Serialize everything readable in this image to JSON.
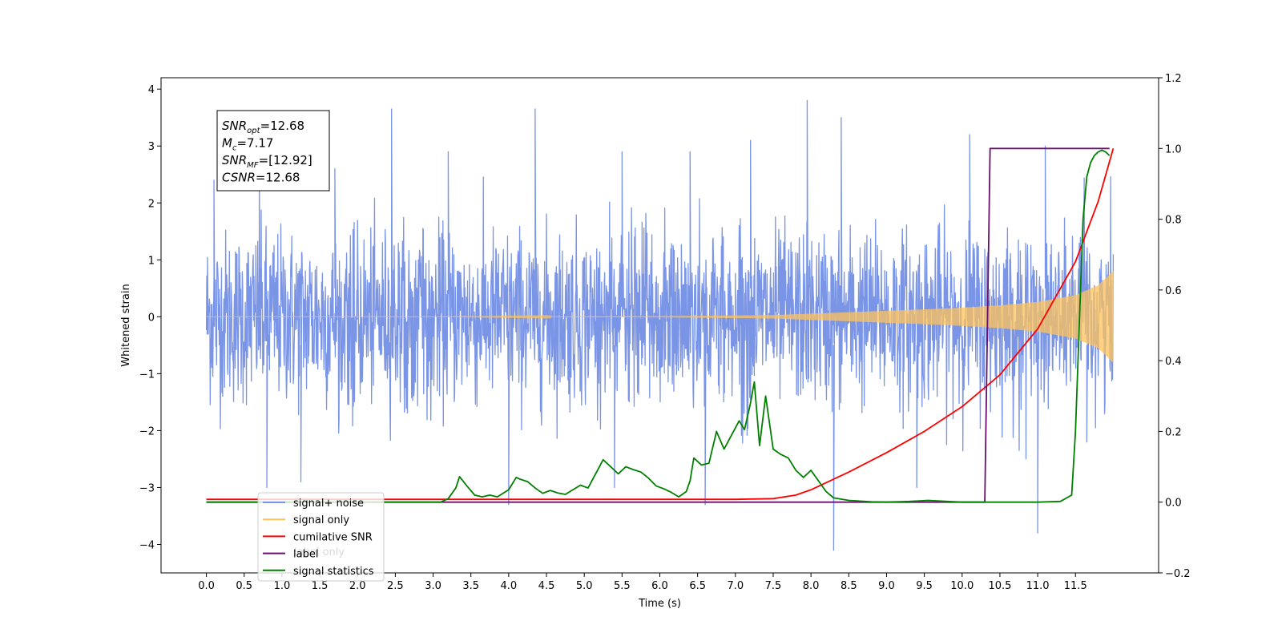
{
  "chart_data": {
    "type": "line",
    "xlabel": "Time (s)",
    "ylabel": "Whitened strain",
    "xlim": [
      -0.6,
      12.6
    ],
    "ylim": [
      -4.5,
      4.2
    ],
    "y2lim": [
      -0.2,
      1.2
    ],
    "x_ticks": [
      "0.0",
      "0.5",
      "1.0",
      "1.5",
      "2.0",
      "2.5",
      "3.0",
      "3.5",
      "4.0",
      "4.5",
      "5.0",
      "5.5",
      "6.0",
      "6.5",
      "7.0",
      "7.5",
      "8.0",
      "8.5",
      "9.0",
      "9.5",
      "10.0",
      "10.5",
      "11.0",
      "11.5"
    ],
    "y_ticks": [
      "4",
      "3",
      "2",
      "1",
      "0",
      "−1",
      "−2",
      "−3",
      "−4"
    ],
    "y2_ticks": [
      "1.2",
      "1.0",
      "0.8",
      "0.6",
      "0.4",
      "0.2",
      "0.0",
      "−0.2"
    ],
    "annotation": {
      "lines": [
        {
          "main": "SNR",
          "sub": "opt",
          "rest": "=12.68"
        },
        {
          "main": "M",
          "sub": "c",
          "rest": "=7.17"
        },
        {
          "main": "SNR",
          "sub": "MF",
          "rest": "=[12.92]"
        },
        {
          "main": "CSNR",
          "sub": "",
          "rest": "=12.68"
        }
      ]
    },
    "legend": {
      "placement": "lower-left",
      "entries": [
        {
          "label": "signal+ noise",
          "color": "#7a94e6"
        },
        {
          "label": "signal only",
          "color": "#ffc35a"
        },
        {
          "label": "cumilative SNR",
          "color": "#ff0000"
        },
        {
          "label": "label",
          "color": "#6a0f70"
        },
        {
          "label": "signal statistics",
          "color": "#008000"
        }
      ],
      "hidden_text": "label only"
    },
    "series": [
      {
        "name": "signal+ noise",
        "axis": "left",
        "description_note": "noise band",
        "x_range": [
          0.0,
          12.0
        ],
        "typical_band": [
          -1.6,
          1.6
        ],
        "peaks_high": [
          [
            0.1,
            2.4
          ],
          [
            0.7,
            2.5
          ],
          [
            1.7,
            2.6
          ],
          [
            2.45,
            3.65
          ],
          [
            3.2,
            2.9
          ],
          [
            4.35,
            3.65
          ],
          [
            5.5,
            2.9
          ],
          [
            6.4,
            2.9
          ],
          [
            7.2,
            3.1
          ],
          [
            7.95,
            3.8
          ],
          [
            8.4,
            3.5
          ],
          [
            10.1,
            3.2
          ],
          [
            11.1,
            3.0
          ]
        ],
        "peaks_low": [
          [
            0.8,
            -3.0
          ],
          [
            1.25,
            -2.9
          ],
          [
            4.0,
            -3.3
          ],
          [
            5.4,
            -3.0
          ],
          [
            6.6,
            -3.3
          ],
          [
            8.3,
            -4.1
          ],
          [
            9.4,
            -3.0
          ],
          [
            11.0,
            -3.8
          ],
          [
            11.65,
            -2.2
          ]
        ]
      },
      {
        "name": "signal only",
        "axis": "left",
        "x": [
          0.0,
          3.0,
          6.0,
          7.5,
          8.5,
          9.5,
          10.0,
          10.5,
          11.0,
          11.5,
          11.8,
          12.0
        ],
        "amplitude": [
          0.0,
          0.0,
          0.01,
          0.03,
          0.08,
          0.13,
          0.16,
          0.2,
          0.26,
          0.38,
          0.55,
          0.8
        ]
      },
      {
        "name": "cumilative SNR",
        "axis": "right",
        "x": [
          0.0,
          6.5,
          7.0,
          7.5,
          7.8,
          8.0,
          8.2,
          8.5,
          9.0,
          9.5,
          10.0,
          10.5,
          11.0,
          11.5,
          11.8,
          12.0
        ],
        "y": [
          0.008,
          0.008,
          0.008,
          0.01,
          0.02,
          0.035,
          0.055,
          0.085,
          0.14,
          0.2,
          0.27,
          0.36,
          0.49,
          0.68,
          0.85,
          1.0
        ]
      },
      {
        "name": "label",
        "axis": "right",
        "x": [
          0.0,
          10.3,
          10.37,
          11.95
        ],
        "y": [
          0.0,
          0.0,
          1.0,
          1.0
        ]
      },
      {
        "name": "signal statistics",
        "axis": "right",
        "x": [
          0.0,
          3.1,
          3.2,
          3.3,
          3.35,
          3.45,
          3.55,
          3.65,
          3.75,
          3.85,
          4.0,
          4.1,
          4.15,
          4.25,
          4.35,
          4.45,
          4.55,
          4.65,
          4.75,
          4.85,
          4.95,
          5.05,
          5.15,
          5.25,
          5.35,
          5.45,
          5.55,
          5.65,
          5.75,
          5.85,
          5.95,
          6.05,
          6.15,
          6.25,
          6.35,
          6.4,
          6.45,
          6.55,
          6.65,
          6.75,
          6.85,
          6.95,
          7.05,
          7.12,
          7.2,
          7.25,
          7.32,
          7.4,
          7.5,
          7.6,
          7.7,
          7.8,
          7.9,
          8.0,
          8.1,
          8.2,
          8.3,
          8.5,
          8.8,
          9.0,
          9.3,
          9.55,
          9.8,
          10.0,
          10.5,
          11.0,
          11.3,
          11.45,
          11.5,
          11.55,
          11.6,
          11.65,
          11.7,
          11.75,
          11.8,
          11.85,
          11.9,
          11.95
        ],
        "y": [
          0.0,
          0.0,
          0.01,
          0.04,
          0.072,
          0.045,
          0.02,
          0.015,
          0.02,
          0.015,
          0.035,
          0.07,
          0.065,
          0.058,
          0.04,
          0.025,
          0.033,
          0.026,
          0.022,
          0.035,
          0.048,
          0.04,
          0.08,
          0.12,
          0.1,
          0.08,
          0.1,
          0.092,
          0.085,
          0.068,
          0.046,
          0.038,
          0.028,
          0.015,
          0.03,
          0.06,
          0.125,
          0.105,
          0.11,
          0.2,
          0.15,
          0.19,
          0.23,
          0.205,
          0.28,
          0.34,
          0.16,
          0.3,
          0.15,
          0.135,
          0.125,
          0.09,
          0.07,
          0.09,
          0.06,
          0.03,
          0.012,
          0.005,
          0.001,
          0.0,
          0.002,
          0.005,
          0.002,
          0.0,
          0.0,
          0.0,
          0.002,
          0.02,
          0.2,
          0.5,
          0.8,
          0.92,
          0.96,
          0.98,
          0.99,
          0.995,
          0.99,
          0.98
        ]
      }
    ]
  }
}
